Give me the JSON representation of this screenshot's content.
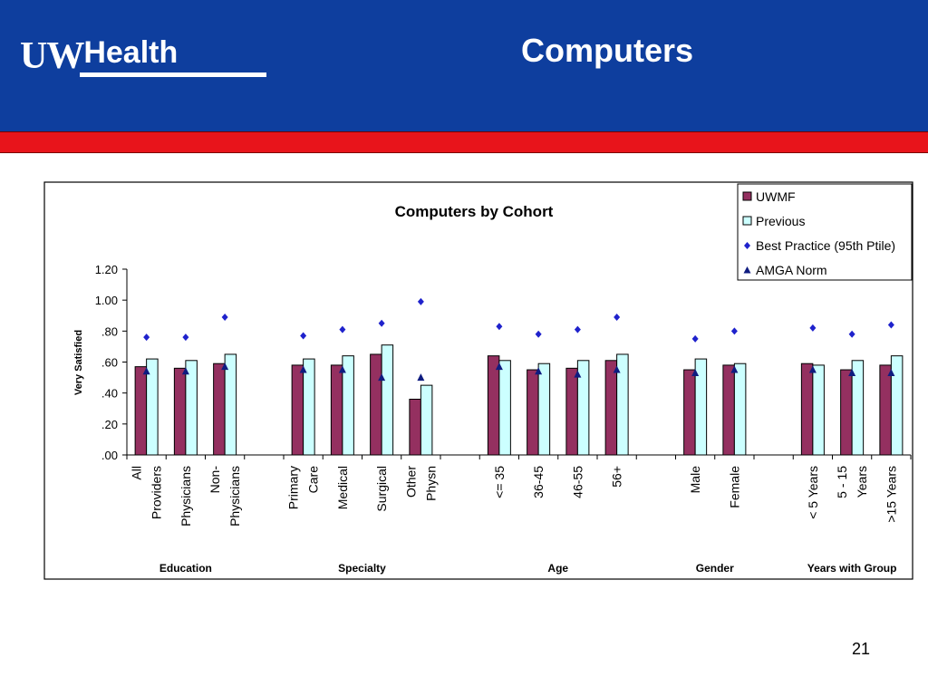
{
  "header": {
    "logo_prefix": "UW",
    "logo_suffix": "Health",
    "title": "Computers"
  },
  "footer": {
    "page_number": "21"
  },
  "colors": {
    "banner": "#0e3e9e",
    "stripe": "#e8141b",
    "uwmf": "#943060",
    "previous": "#ccffff",
    "best_practice": "#1f22cc",
    "amga": "#0f1c80"
  },
  "chart_data": {
    "type": "bar",
    "title": "Computers by Cohort",
    "ylabel": "Very Satisfied",
    "xlabel": "",
    "ylim": [
      0,
      1.2
    ],
    "yticks": [
      0,
      0.2,
      0.4,
      0.6,
      0.8,
      1.0,
      1.2
    ],
    "ytick_labels": [
      ".00",
      ".20",
      ".40",
      ".60",
      ".80",
      "1.00",
      "1.20"
    ],
    "grid": false,
    "legend_position": "top-right",
    "categories": [
      "All Providers",
      "Physicians",
      "Non-Physicians",
      "",
      "Primary Care",
      "Medical",
      "Surgical",
      "Other Physn",
      "",
      "<= 35",
      "36-45",
      "46-55",
      "56+",
      "",
      "Male",
      "Female",
      "",
      "< 5 Years",
      "5 - 15 Years",
      ">15 Years"
    ],
    "category_label_lines": [
      [
        "All",
        "Providers"
      ],
      [
        "Physicians"
      ],
      [
        "Non-",
        "Physicians"
      ],
      [],
      [
        "Primary",
        "Care"
      ],
      [
        "Medical"
      ],
      [
        "Surgical"
      ],
      [
        "Other",
        "Physn"
      ],
      [],
      [
        "<= 35"
      ],
      [
        "36-45"
      ],
      [
        "46-55"
      ],
      [
        "56+"
      ],
      [],
      [
        "Male"
      ],
      [
        "Female"
      ],
      [],
      [
        "< 5 Years"
      ],
      [
        "5 - 15",
        "Years"
      ],
      [
        ">15 Years"
      ]
    ],
    "groups": [
      {
        "label": "Education",
        "from": 0,
        "to": 2
      },
      {
        "label": "Specialty",
        "from": 4,
        "to": 7
      },
      {
        "label": "Age",
        "from": 9,
        "to": 12
      },
      {
        "label": "Gender",
        "from": 14,
        "to": 15
      },
      {
        "label": "Years with Group",
        "from": 17,
        "to": 19
      }
    ],
    "series": [
      {
        "name": "UWMF",
        "kind": "bar",
        "values": [
          0.57,
          0.56,
          0.59,
          null,
          0.58,
          0.58,
          0.65,
          0.36,
          null,
          0.64,
          0.55,
          0.56,
          0.61,
          null,
          0.55,
          0.58,
          null,
          0.59,
          0.55,
          0.58
        ]
      },
      {
        "name": "Previous",
        "kind": "bar",
        "values": [
          0.62,
          0.61,
          0.65,
          null,
          0.62,
          0.64,
          0.71,
          0.45,
          null,
          0.61,
          0.59,
          0.61,
          0.65,
          null,
          0.62,
          0.59,
          null,
          0.58,
          0.61,
          0.64
        ]
      },
      {
        "name": "Best Practice (95th Ptile)",
        "kind": "diamond",
        "values": [
          0.76,
          0.76,
          0.89,
          null,
          0.77,
          0.81,
          0.85,
          0.99,
          null,
          0.83,
          0.78,
          0.81,
          0.89,
          null,
          0.75,
          0.8,
          null,
          0.82,
          0.78,
          0.84
        ]
      },
      {
        "name": "AMGA Norm",
        "kind": "triangle",
        "values": [
          0.54,
          0.54,
          0.57,
          null,
          0.55,
          0.55,
          0.5,
          0.5,
          null,
          0.57,
          0.54,
          0.52,
          0.55,
          null,
          0.53,
          0.55,
          null,
          0.55,
          0.53,
          0.53
        ]
      }
    ]
  }
}
